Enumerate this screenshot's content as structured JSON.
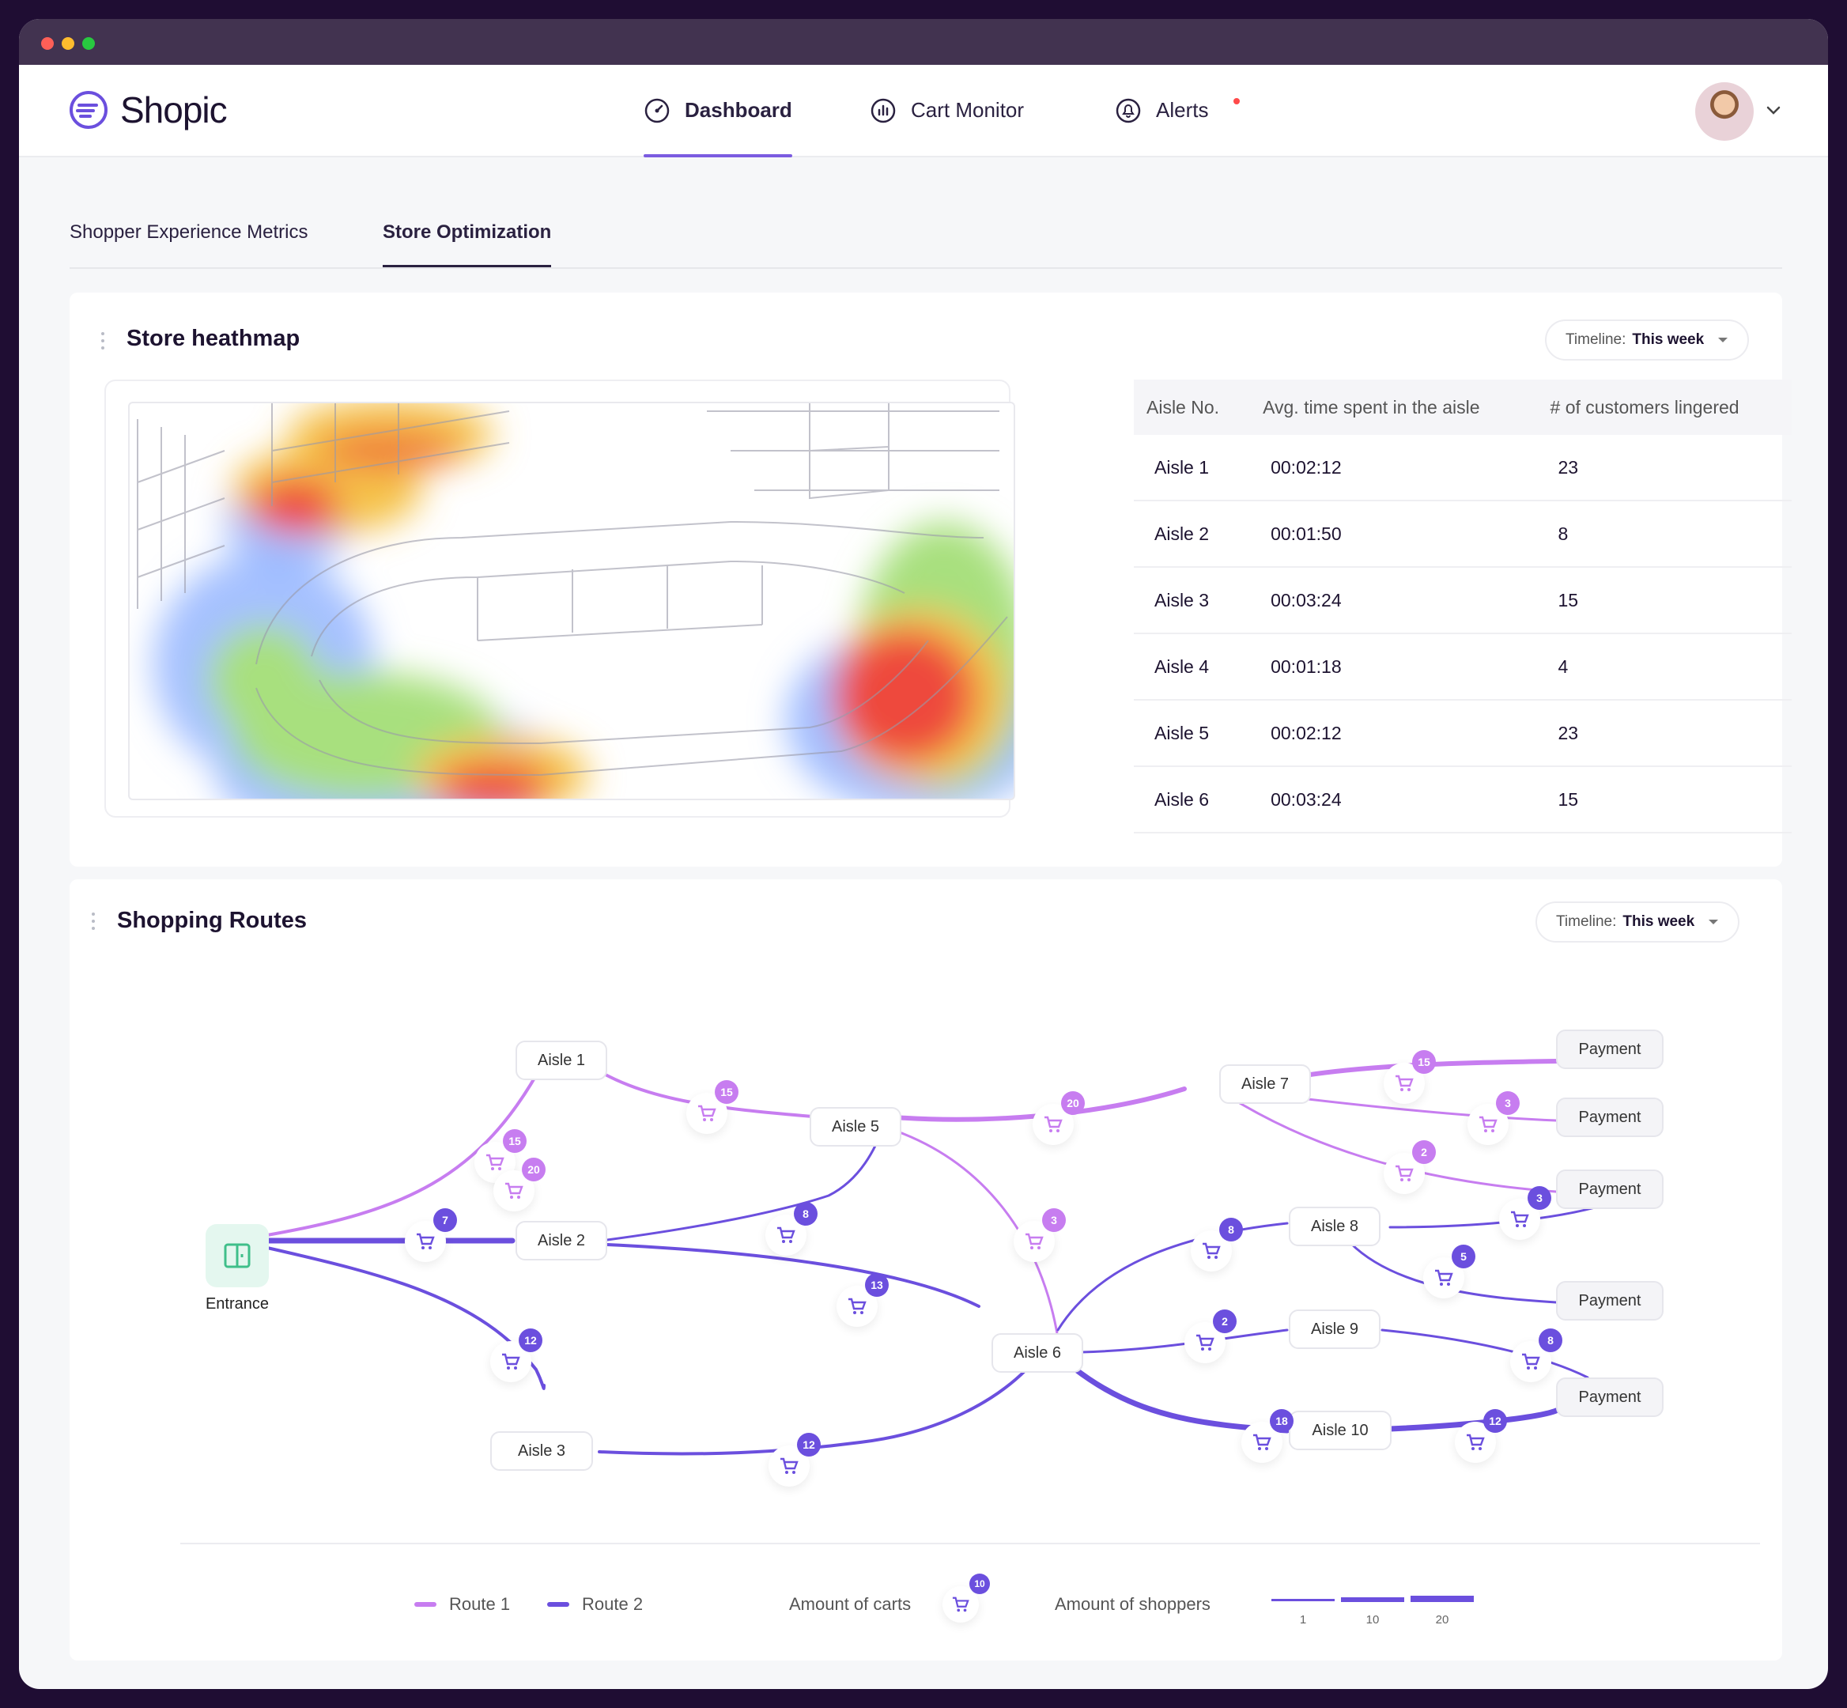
{
  "app": {
    "name": "Shopic"
  },
  "nav": {
    "dashboard": "Dashboard",
    "cart_monitor": "Cart Monitor",
    "alerts": "Alerts"
  },
  "tabs": {
    "tab1": "Shopper Experience Metrics",
    "tab2": "Store Optimization"
  },
  "heatmap": {
    "title": "Store heathmap",
    "timeline_label": "Timeline:",
    "timeline_value": "This week",
    "columns": [
      "Aisle No.",
      "Avg. time spent in the aisle",
      "# of customers lingered"
    ],
    "rows": [
      [
        "Aisle 1",
        "00:02:12",
        "23"
      ],
      [
        "Aisle 2",
        "00:01:50",
        "8"
      ],
      [
        "Aisle 3",
        "00:03:24",
        "15"
      ],
      [
        "Aisle 4",
        "00:01:18",
        "4"
      ],
      [
        "Aisle 5",
        "00:02:12",
        "23"
      ],
      [
        "Aisle 6",
        "00:03:24",
        "15"
      ]
    ]
  },
  "routes": {
    "title": "Shopping Routes",
    "timeline_label": "Timeline:",
    "timeline_value": "This week",
    "entrance": "Entrance",
    "nodes": {
      "a1": "Aisle 1",
      "a2": "Aisle 2",
      "a3": "Aisle 3",
      "a5": "Aisle 5",
      "a6": "Aisle 6",
      "a7": "Aisle 7",
      "a8": "Aisle 8",
      "a9": "Aisle 9",
      "a10": "Aisle 10",
      "pay": "Payment"
    },
    "cart_counts": {
      "c1": "15",
      "c2": "15",
      "c3": "20",
      "c4": "15",
      "c5": "3",
      "c6": "2",
      "c7": "20",
      "c8": "7",
      "c9": "13",
      "c10": "12",
      "c11": "12",
      "c12": "3",
      "c13": "8",
      "c14": "3",
      "c15": "5",
      "c16": "2",
      "c17": "8",
      "c18": "18",
      "c19": "12"
    },
    "colors": {
      "route1": "#c77df0",
      "route2": "#6b4fde"
    },
    "legend": {
      "route1": "Route 1",
      "route2": "Route 2",
      "carts": "Amount of carts",
      "carts_count": "10",
      "shoppers": "Amount of shoppers",
      "s1": "1",
      "s2": "10",
      "s3": "20"
    }
  }
}
